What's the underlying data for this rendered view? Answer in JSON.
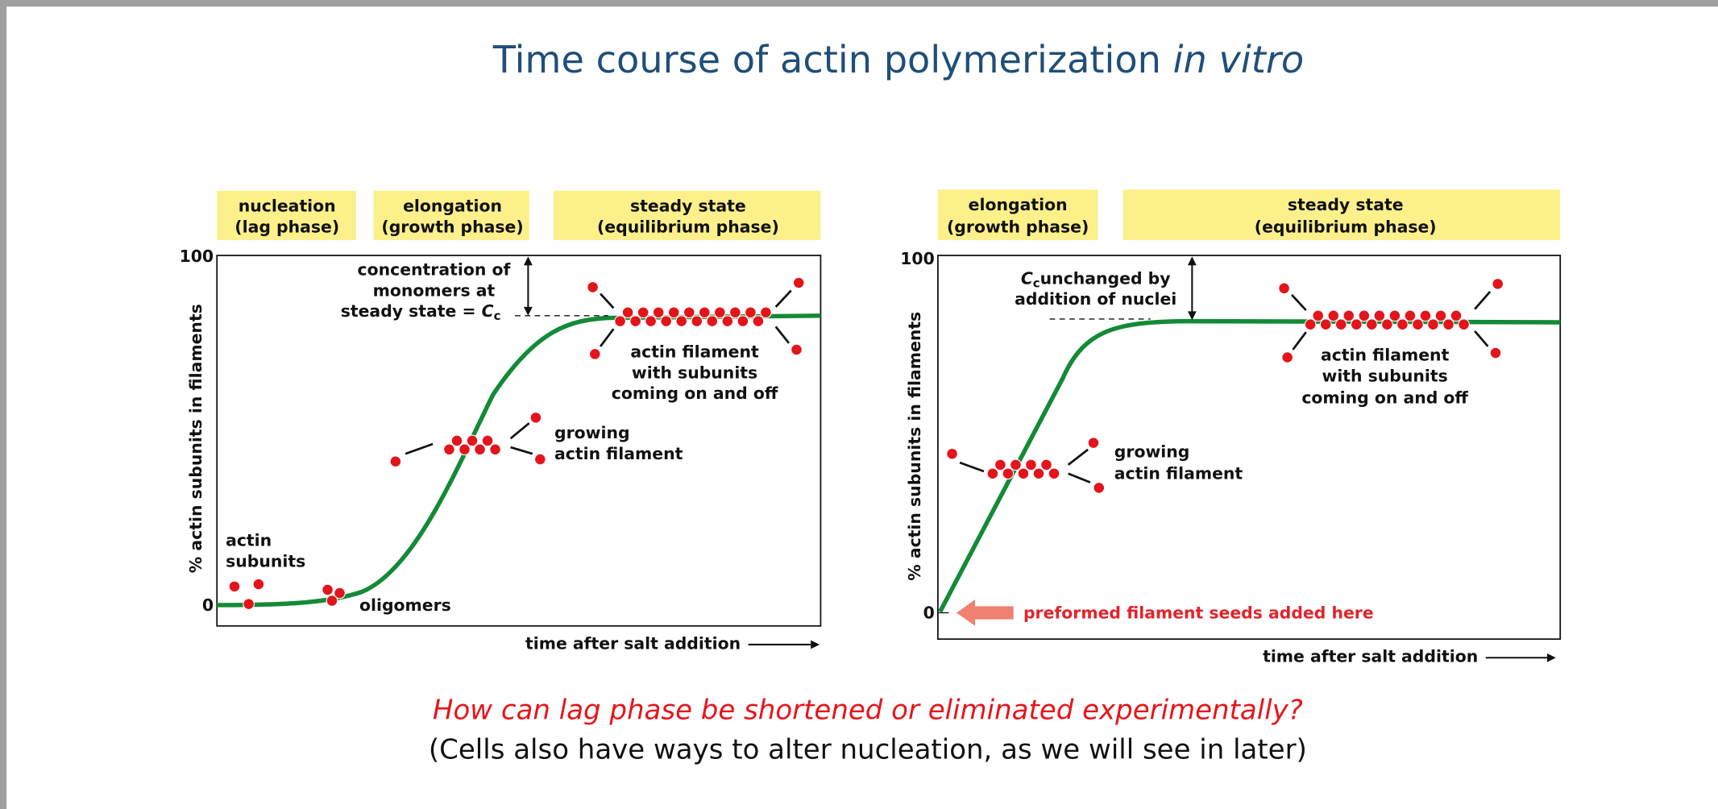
{
  "title": {
    "main": "Time course of actin polymerization ",
    "italic": "in vitro"
  },
  "left": {
    "phases": [
      {
        "line1": "nucleation",
        "line2": "(lag phase)"
      },
      {
        "line1": "elongation",
        "line2": "(growth phase)"
      },
      {
        "line1": "steady state",
        "line2": "(equilibrium phase)"
      }
    ],
    "y_label": "% actin subunits in filaments",
    "y_ticks": [
      "100",
      "0"
    ],
    "x_label": "time after salt addition",
    "cc_note": {
      "lines": [
        "concentration of",
        "monomers at",
        "steady state = "
      ],
      "symbol": "C",
      "subscript": "c"
    },
    "steady_label": [
      "actin filament",
      "with subunits",
      "coming on and off"
    ],
    "growing_label": [
      "growing",
      "actin filament"
    ],
    "subunits_label": [
      "actin",
      "subunits"
    ],
    "oligomers_label": "oligomers"
  },
  "right": {
    "phases": [
      {
        "line1": "elongation",
        "line2": "(growth phase)"
      },
      {
        "line1": "steady state",
        "line2": "(equilibrium phase)"
      }
    ],
    "y_label": "% actin subunits in filaments",
    "y_ticks": [
      "100",
      "0"
    ],
    "x_label": "time after salt addition",
    "cc_note": {
      "symbol": "C",
      "subscript": "c",
      "rest": "unchanged by",
      "line2": "addition of nuclei"
    },
    "steady_label": [
      "actin filament",
      "with subunits",
      "coming on and off"
    ],
    "growing_label": [
      "growing",
      "actin filament"
    ],
    "seeds_label": "preformed filament seeds added here"
  },
  "question": "How can lag phase be shortened or eliminated experimentally?",
  "note": "(Cells also have ways to alter nucleation, as we will see in later)"
}
